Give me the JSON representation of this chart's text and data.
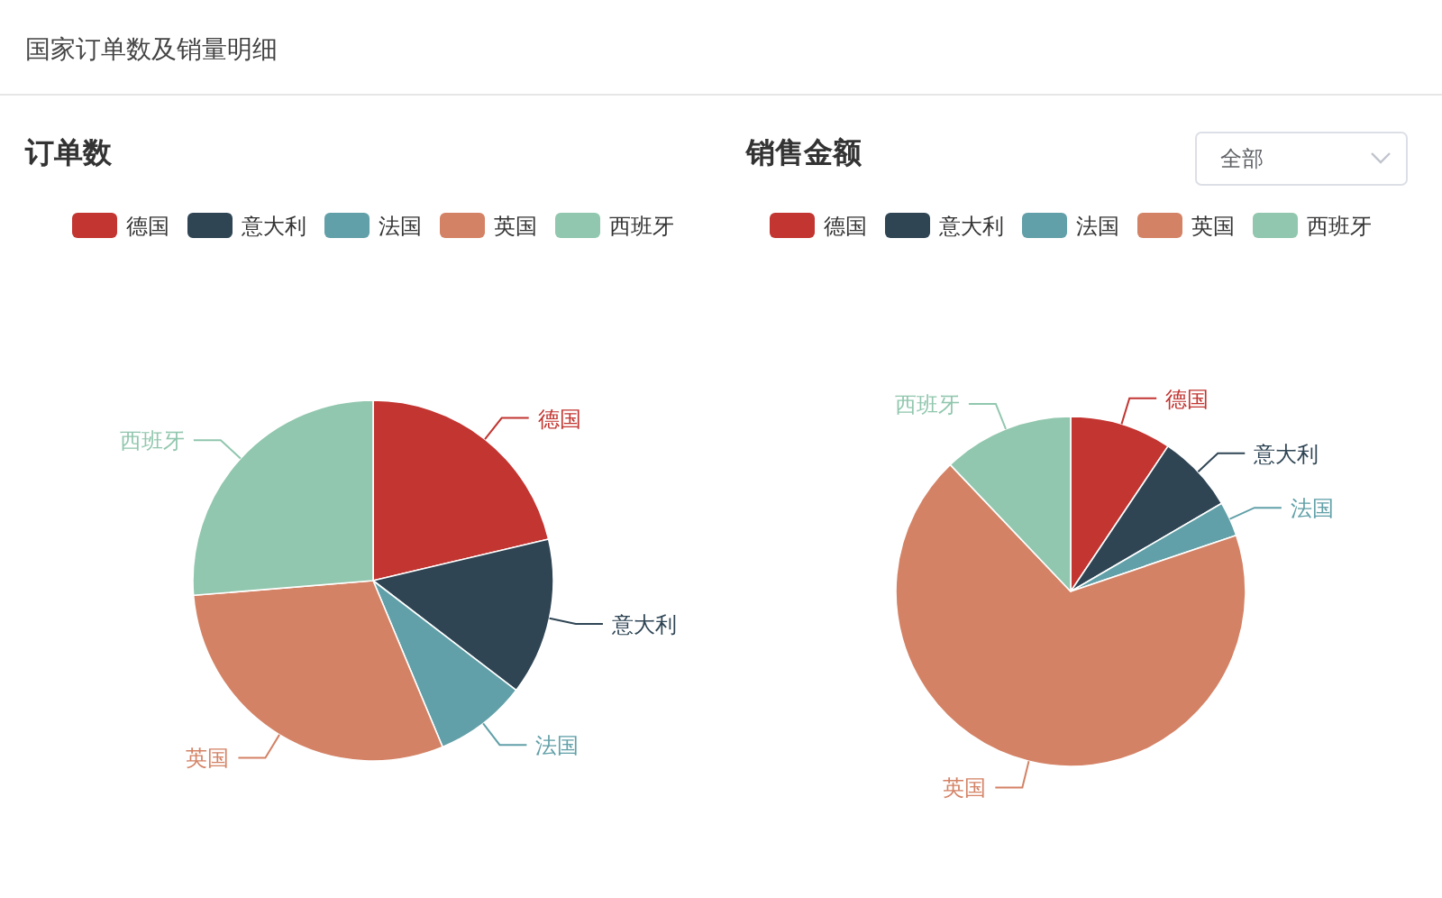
{
  "chart_data": [
    {
      "type": "pie",
      "title": "订单数",
      "annotations": [
        "国家订单数及销量明细"
      ],
      "categories": [
        "德国",
        "意大利",
        "法国",
        "英国",
        "西班牙"
      ],
      "values": [
        21.3,
        14.1,
        8.3,
        30.0,
        26.3
      ],
      "colors": [
        "#c23531",
        "#2f4554",
        "#61a0a8",
        "#d48265",
        "#91c7ae"
      ],
      "legend": "top"
    },
    {
      "type": "pie",
      "title": "销售金额",
      "annotations": [
        "全部"
      ],
      "categories": [
        "德国",
        "意大利",
        "法国",
        "英国",
        "西班牙"
      ],
      "values": [
        9.4,
        7.2,
        3.2,
        68.1,
        12.1
      ],
      "colors": [
        "#c23531",
        "#2f4554",
        "#61a0a8",
        "#d48265",
        "#91c7ae"
      ],
      "legend": "top"
    }
  ]
}
